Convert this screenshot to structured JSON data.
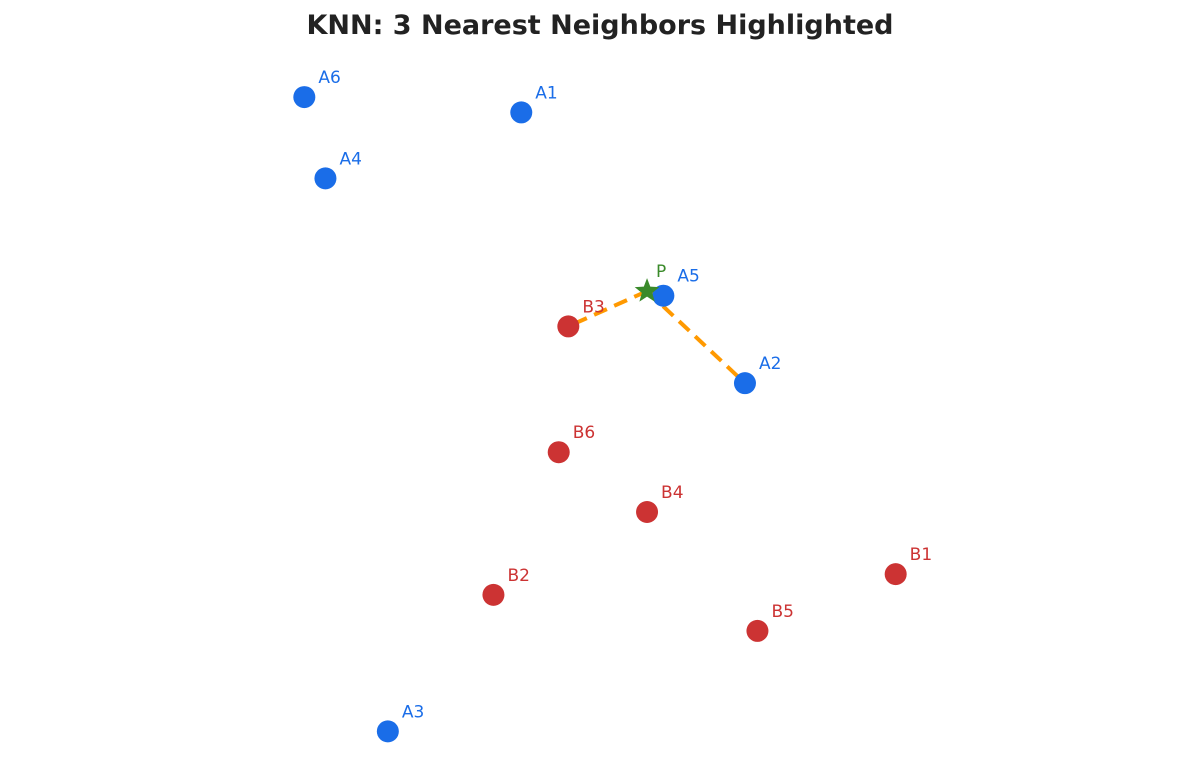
{
  "chart_data": {
    "type": "scatter",
    "title": "KNN: 3 Nearest Neighbors Highlighted",
    "xlabel": "",
    "ylabel": "",
    "xlim": [
      0,
      10
    ],
    "ylim": [
      0,
      10
    ],
    "grid": false,
    "k": 3,
    "colors": {
      "class_a": "#1a6de8",
      "class_b": "#cc3333",
      "query": "#3a8a2a",
      "neighbor_line": "#ff9900"
    },
    "points": [
      {
        "label": "A1",
        "class": "A",
        "x": 4.18,
        "y": 8.73
      },
      {
        "label": "A2",
        "class": "A",
        "x": 6.51,
        "y": 5.2
      },
      {
        "label": "A3",
        "class": "A",
        "x": 2.79,
        "y": 0.66
      },
      {
        "label": "A4",
        "class": "A",
        "x": 2.14,
        "y": 7.87
      },
      {
        "label": "A5",
        "class": "A",
        "x": 5.66,
        "y": 6.34
      },
      {
        "label": "A6",
        "class": "A",
        "x": 1.92,
        "y": 8.93
      },
      {
        "label": "B1",
        "class": "B",
        "x": 8.08,
        "y": 2.71
      },
      {
        "label": "B2",
        "class": "B",
        "x": 3.89,
        "y": 2.44
      },
      {
        "label": "B3",
        "class": "B",
        "x": 4.67,
        "y": 5.94
      },
      {
        "label": "B4",
        "class": "B",
        "x": 5.49,
        "y": 3.52
      },
      {
        "label": "B5",
        "class": "B",
        "x": 6.64,
        "y": 1.97
      },
      {
        "label": "B6",
        "class": "B",
        "x": 4.57,
        "y": 4.3
      }
    ],
    "query": {
      "label": "P",
      "x": 5.49,
      "y": 6.4
    },
    "neighbors": [
      "A5",
      "B3",
      "A2"
    ]
  }
}
